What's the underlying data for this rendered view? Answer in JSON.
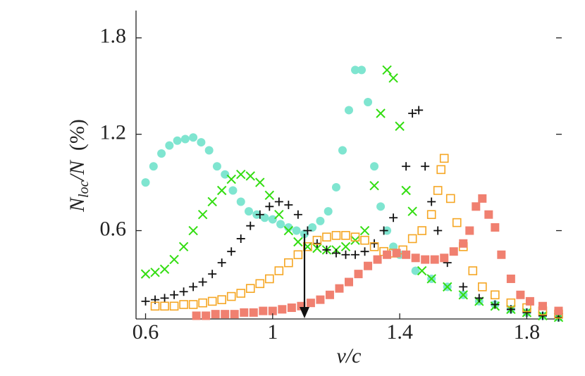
{
  "chart_data": {
    "type": "scatter",
    "xlabel": "v/c",
    "ylabel": [
      "N",
      "loc",
      "/N",
      "(%)"
    ],
    "xlim": [
      0.57,
      1.91
    ],
    "ylim": [
      0.05,
      1.97
    ],
    "xticks": [
      0.6,
      1,
      1.4,
      1.8
    ],
    "yticks": [
      0.6,
      1.2,
      1.8
    ],
    "series": [
      {
        "color": "#7fe5d0",
        "marker": "circle",
        "x": [
          0.6,
          0.625,
          0.65,
          0.675,
          0.7,
          0.725,
          0.75,
          0.775,
          0.8,
          0.825,
          0.85,
          0.875,
          0.9,
          0.925,
          0.95,
          0.975,
          1.0,
          1.025,
          1.05,
          1.075,
          1.1,
          1.125,
          1.15,
          1.175,
          1.2,
          1.22,
          1.24,
          1.26,
          1.28,
          1.3,
          1.32,
          1.34,
          1.36,
          1.38,
          1.4,
          1.45,
          1.5,
          1.55,
          1.6,
          1.65,
          1.7,
          1.75,
          1.8,
          1.85,
          1.9
        ],
        "values": [
          0.9,
          1.0,
          1.08,
          1.13,
          1.16,
          1.17,
          1.18,
          1.15,
          1.1,
          1.0,
          0.95,
          0.85,
          0.78,
          0.72,
          0.7,
          0.68,
          0.67,
          0.64,
          0.62,
          0.6,
          0.58,
          0.62,
          0.66,
          0.72,
          0.87,
          1.1,
          1.35,
          1.6,
          1.6,
          1.4,
          1.0,
          0.75,
          0.6,
          0.5,
          0.45,
          0.35,
          0.3,
          0.25,
          0.2,
          0.16,
          0.14,
          0.11,
          0.09,
          0.07,
          0.06
        ]
      },
      {
        "color": "#33dd11",
        "marker": "cross",
        "x": [
          0.6,
          0.63,
          0.66,
          0.69,
          0.72,
          0.75,
          0.78,
          0.81,
          0.84,
          0.87,
          0.9,
          0.93,
          0.96,
          0.99,
          1.02,
          1.05,
          1.08,
          1.11,
          1.14,
          1.17,
          1.2,
          1.23,
          1.26,
          1.29,
          1.32,
          1.34,
          1.36,
          1.38,
          1.4,
          1.42,
          1.44,
          1.47,
          1.5,
          1.55,
          1.6,
          1.65,
          1.7,
          1.75,
          1.8,
          1.85,
          1.9
        ],
        "values": [
          0.33,
          0.34,
          0.36,
          0.42,
          0.5,
          0.6,
          0.7,
          0.78,
          0.85,
          0.92,
          0.95,
          0.94,
          0.9,
          0.82,
          0.7,
          0.6,
          0.53,
          0.5,
          0.49,
          0.48,
          0.48,
          0.5,
          0.54,
          0.6,
          0.88,
          1.33,
          1.6,
          1.55,
          1.25,
          0.85,
          0.72,
          0.35,
          0.3,
          0.25,
          0.2,
          0.16,
          0.13,
          0.11,
          0.09,
          0.07,
          0.06
        ]
      },
      {
        "color": "#111111",
        "marker": "plus",
        "x": [
          0.6,
          0.63,
          0.66,
          0.69,
          0.72,
          0.75,
          0.78,
          0.81,
          0.84,
          0.87,
          0.9,
          0.93,
          0.96,
          0.99,
          1.02,
          1.05,
          1.08,
          1.11,
          1.14,
          1.17,
          1.2,
          1.23,
          1.26,
          1.29,
          1.32,
          1.35,
          1.38,
          1.42,
          1.44,
          1.46,
          1.48,
          1.5,
          1.52,
          1.55,
          1.6,
          1.65,
          1.7,
          1.75,
          1.8,
          1.85,
          1.9
        ],
        "values": [
          0.16,
          0.17,
          0.18,
          0.2,
          0.22,
          0.25,
          0.28,
          0.33,
          0.4,
          0.47,
          0.55,
          0.63,
          0.7,
          0.75,
          0.78,
          0.76,
          0.7,
          0.6,
          0.52,
          0.48,
          0.46,
          0.45,
          0.45,
          0.47,
          0.52,
          0.6,
          0.68,
          1.0,
          1.33,
          1.35,
          1.0,
          0.78,
          0.6,
          0.4,
          0.25,
          0.18,
          0.14,
          0.11,
          0.09,
          0.07,
          0.06
        ]
      },
      {
        "color": "#f5a623",
        "marker": "open-square",
        "x": [
          0.63,
          0.66,
          0.69,
          0.72,
          0.75,
          0.78,
          0.81,
          0.84,
          0.87,
          0.9,
          0.93,
          0.96,
          0.99,
          1.02,
          1.05,
          1.08,
          1.11,
          1.14,
          1.17,
          1.2,
          1.23,
          1.26,
          1.29,
          1.32,
          1.35,
          1.38,
          1.41,
          1.44,
          1.47,
          1.5,
          1.52,
          1.53,
          1.54,
          1.56,
          1.58,
          1.6,
          1.63,
          1.66,
          1.7,
          1.75,
          1.8,
          1.85,
          1.9
        ],
        "values": [
          0.13,
          0.13,
          0.13,
          0.14,
          0.14,
          0.15,
          0.16,
          0.17,
          0.19,
          0.21,
          0.24,
          0.27,
          0.3,
          0.35,
          0.4,
          0.45,
          0.5,
          0.54,
          0.56,
          0.57,
          0.57,
          0.56,
          0.54,
          0.5,
          0.47,
          0.46,
          0.48,
          0.55,
          0.6,
          0.7,
          0.85,
          0.98,
          1.05,
          0.8,
          0.65,
          0.5,
          0.35,
          0.25,
          0.2,
          0.15,
          0.12,
          0.1,
          0.08
        ]
      },
      {
        "color": "#f08070",
        "marker": "square",
        "x": [
          0.76,
          0.79,
          0.82,
          0.85,
          0.88,
          0.91,
          0.94,
          0.97,
          1.0,
          1.03,
          1.06,
          1.09,
          1.12,
          1.15,
          1.18,
          1.21,
          1.24,
          1.27,
          1.3,
          1.33,
          1.36,
          1.39,
          1.42,
          1.45,
          1.48,
          1.51,
          1.54,
          1.57,
          1.6,
          1.62,
          1.64,
          1.66,
          1.68,
          1.7,
          1.72,
          1.75,
          1.78,
          1.81,
          1.85,
          1.9
        ],
        "values": [
          0.07,
          0.07,
          0.08,
          0.08,
          0.08,
          0.09,
          0.09,
          0.1,
          0.1,
          0.11,
          0.12,
          0.13,
          0.15,
          0.17,
          0.2,
          0.24,
          0.28,
          0.33,
          0.38,
          0.42,
          0.45,
          0.46,
          0.45,
          0.43,
          0.42,
          0.42,
          0.43,
          0.47,
          0.52,
          0.6,
          0.75,
          0.8,
          0.7,
          0.62,
          0.45,
          0.3,
          0.2,
          0.16,
          0.13,
          0.1
        ]
      }
    ]
  }
}
